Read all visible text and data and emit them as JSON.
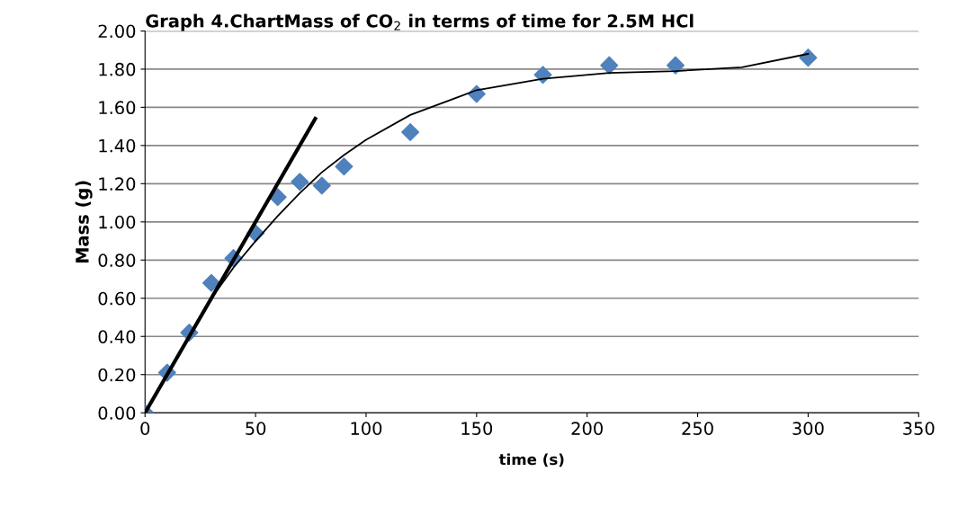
{
  "chart_data": {
    "type": "scatter",
    "title": "Graph 4.ChartMass of CO$_{2}$ in terms of time for 2.5M HCl",
    "xlabel": "time (s)",
    "ylabel": "Mass (g)",
    "series": [
      {
        "color": "#4f81bd",
        "marker": "diamond",
        "x": [
          0,
          10,
          20,
          30,
          40,
          50,
          60,
          70,
          80,
          90,
          120,
          150,
          180,
          210,
          240,
          300
        ],
        "values": [
          0,
          0.21,
          0.42,
          0.68,
          0.81,
          0.94,
          1.13,
          1.21,
          1.19,
          1.29,
          1.47,
          1.67,
          1.77,
          1.82,
          1.82,
          1.86
        ]
      },
      {
        "type": "line",
        "color": "#000000",
        "line_style": "solid",
        "x": [
          0,
          10,
          20,
          30,
          40,
          50,
          60,
          70,
          80,
          90,
          100,
          120,
          150,
          180,
          210,
          240,
          270,
          300
        ],
        "values": [
          0,
          0.2,
          0.4,
          0.6,
          0.76,
          0.9,
          1.03,
          1.15,
          1.26,
          1.35,
          1.43,
          1.56,
          1.69,
          1.75,
          1.78,
          1.79,
          1.81,
          1.88
        ]
      },
      {
        "type": "line",
        "color": "#000000",
        "line_style": "solid",
        "x": [
          0,
          77
        ],
        "values": [
          0,
          1.54
        ]
      }
    ],
    "xlim": [
      0,
      350
    ],
    "xticks": [
      0,
      50,
      100,
      150,
      200,
      250,
      300,
      350
    ],
    "ylim": [
      0,
      2
    ],
    "yticks": [
      {
        "value": 0,
        "label": "0.00"
      },
      {
        "value": 0.2,
        "label": "0.20"
      },
      {
        "value": 0.4,
        "label": "0.40"
      },
      {
        "value": 0.6,
        "label": "0.60"
      },
      {
        "value": 0.8,
        "label": "0.80"
      },
      {
        "value": 1.0,
        "label": "1.00"
      },
      {
        "value": 1.2,
        "label": "1.20"
      },
      {
        "value": 1.4,
        "label": "1.40"
      },
      {
        "value": 1.6,
        "label": "1.60"
      },
      {
        "value": 1.8,
        "label": "1.80"
      },
      {
        "value": 2.0,
        "label": "2.00"
      }
    ],
    "grid": "y",
    "legend": false
  }
}
